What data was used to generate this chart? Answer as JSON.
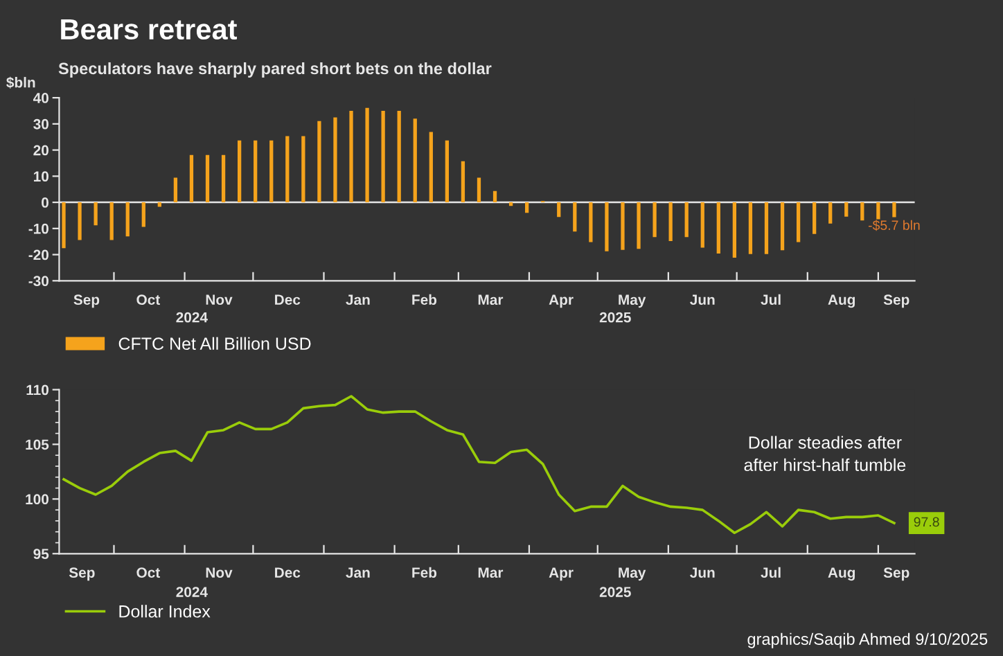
{
  "chart_data": [
    {
      "type": "bar",
      "title": "Bears retreat",
      "subtitle": "Speculators have sharply pared short bets on the dollar",
      "ylabel": "$bln",
      "x": [
        "2024-09-09",
        "2024-09-16",
        "2024-09-23",
        "2024-09-30",
        "2024-10-07",
        "2024-10-14",
        "2024-10-21",
        "2024-10-28",
        "2024-11-04",
        "2024-11-11",
        "2024-11-18",
        "2024-11-25",
        "2024-12-02",
        "2024-12-09",
        "2024-12-16",
        "2024-12-23",
        "2024-12-30",
        "2025-01-06",
        "2025-01-13",
        "2025-01-20",
        "2025-01-27",
        "2025-02-03",
        "2025-02-10",
        "2025-02-17",
        "2025-02-24",
        "2025-03-03",
        "2025-03-10",
        "2025-03-17",
        "2025-03-24",
        "2025-03-31",
        "2025-04-07",
        "2025-04-14",
        "2025-04-21",
        "2025-04-28",
        "2025-05-05",
        "2025-05-12",
        "2025-05-19",
        "2025-05-26",
        "2025-06-02",
        "2025-06-09",
        "2025-06-16",
        "2025-06-23",
        "2025-06-30",
        "2025-07-07",
        "2025-07-14",
        "2025-07-21",
        "2025-07-28",
        "2025-08-04",
        "2025-08-11",
        "2025-08-18",
        "2025-08-25",
        "2025-09-01",
        "2025-09-08"
      ],
      "series": [
        {
          "name": "CFTC Net All Billion USD",
          "color": "#f5a31c",
          "values": [
            -17.5,
            -14.4,
            -8.8,
            -14.4,
            -13.0,
            -9.4,
            -1.7,
            9.4,
            18.1,
            18.1,
            18.1,
            23.7,
            23.7,
            23.7,
            25.3,
            25.3,
            31.1,
            32.5,
            35.0,
            36.1,
            35.0,
            35.0,
            32.0,
            26.9,
            23.7,
            15.7,
            9.4,
            4.3,
            -1.4,
            -4.0,
            0.5,
            -5.6,
            -11.2,
            -15.2,
            -18.7,
            -18.2,
            -17.8,
            -13.3,
            -14.8,
            -13.3,
            -17.3,
            -19.6,
            -21.2,
            -19.8,
            -19.8,
            -18.3,
            -15.2,
            -12.1,
            -8.1,
            -5.5,
            -6.9,
            -6.5,
            -5.7
          ],
          "value_labels": [
            null,
            null,
            null,
            null,
            null,
            null,
            null,
            null,
            null,
            null,
            null,
            null,
            null,
            null,
            null,
            null,
            null,
            null,
            null,
            null,
            null,
            null,
            null,
            null,
            null,
            null,
            null,
            null,
            null,
            null,
            null,
            null,
            null,
            null,
            null,
            null,
            null,
            null,
            null,
            null,
            null,
            null,
            null,
            null,
            null,
            null,
            null,
            null,
            null,
            null,
            null,
            null,
            "-$5.7 bln"
          ]
        }
      ],
      "xlim": [
        "2024-09-07",
        "2025-09-17"
      ],
      "xticks": [
        {
          "value": "2024-10-01",
          "label": null
        },
        {
          "value": "2024-11-01",
          "label": null
        },
        {
          "value": "2024-12-01",
          "label": null
        },
        {
          "value": "2025-01-01",
          "label": null
        },
        {
          "value": "2025-02-01",
          "label": null
        },
        {
          "value": "2025-03-01",
          "label": null
        },
        {
          "value": "2025-04-01",
          "label": null
        },
        {
          "value": "2025-05-01",
          "label": null
        },
        {
          "value": "2025-06-01",
          "label": null
        },
        {
          "value": "2025-07-01",
          "label": null
        },
        {
          "value": "2025-08-01",
          "label": null
        },
        {
          "value": "2025-09-01",
          "label": null
        },
        {
          "value": "2024-09-19",
          "label": "Sep"
        },
        {
          "value": "2024-10-16",
          "label": "Oct"
        },
        {
          "value": "2024-11-16",
          "label": "Nov"
        },
        {
          "value": "2024-12-16",
          "label": "Dec"
        },
        {
          "value": "2025-01-16",
          "label": "Jan"
        },
        {
          "value": "2025-02-14",
          "label": "Feb"
        },
        {
          "value": "2025-03-15",
          "label": "Mar"
        },
        {
          "value": "2025-04-15",
          "label": "Apr"
        },
        {
          "value": "2025-05-16",
          "label": "May"
        },
        {
          "value": "2025-06-16",
          "label": "Jun"
        },
        {
          "value": "2025-07-16",
          "label": "Jul"
        },
        {
          "value": "2025-08-16",
          "label": "Aug"
        },
        {
          "value": "2025-09-09",
          "label": "Sep"
        }
      ],
      "ylim": [
        -30,
        40
      ],
      "yticks": [
        -30,
        -20,
        -10,
        0,
        10,
        20,
        30,
        40
      ],
      "annotations": [
        "2024",
        "2025"
      ],
      "ref_lines": [
        {
          "axis": "y",
          "value": 0,
          "color": "#e6e6e6"
        }
      ],
      "legend": "bottom left",
      "grid": false
    },
    {
      "type": "line",
      "x": [
        "2024-09-09",
        "2024-09-16",
        "2024-09-23",
        "2024-09-30",
        "2024-10-07",
        "2024-10-14",
        "2024-10-21",
        "2024-10-28",
        "2024-11-04",
        "2024-11-11",
        "2024-11-18",
        "2024-11-25",
        "2024-12-02",
        "2024-12-09",
        "2024-12-16",
        "2024-12-23",
        "2024-12-30",
        "2025-01-06",
        "2025-01-13",
        "2025-01-20",
        "2025-01-27",
        "2025-02-03",
        "2025-02-10",
        "2025-02-17",
        "2025-02-24",
        "2025-03-03",
        "2025-03-10",
        "2025-03-17",
        "2025-03-24",
        "2025-03-31",
        "2025-04-07",
        "2025-04-14",
        "2025-04-21",
        "2025-04-28",
        "2025-05-05",
        "2025-05-12",
        "2025-05-19",
        "2025-05-26",
        "2025-06-02",
        "2025-06-09",
        "2025-06-16",
        "2025-06-23",
        "2025-06-30",
        "2025-07-07",
        "2025-07-14",
        "2025-07-21",
        "2025-07-28",
        "2025-08-04",
        "2025-08-11",
        "2025-08-18",
        "2025-08-25",
        "2025-09-01",
        "2025-09-08"
      ],
      "series": [
        {
          "name": "Dollar Index",
          "color": "#9acd0a",
          "values": [
            101.8,
            101.0,
            100.4,
            101.2,
            102.5,
            103.4,
            104.2,
            104.4,
            103.5,
            106.1,
            106.3,
            107.0,
            106.4,
            106.4,
            107.0,
            108.3,
            108.5,
            108.6,
            109.4,
            108.2,
            107.9,
            108.0,
            108.0,
            107.1,
            106.3,
            105.9,
            103.4,
            103.3,
            104.3,
            104.5,
            103.2,
            100.4,
            98.9,
            99.3,
            99.3,
            101.2,
            100.2,
            99.7,
            99.3,
            99.2,
            99.0,
            98.0,
            96.9,
            97.7,
            98.8,
            97.5,
            99.0,
            98.8,
            98.2,
            98.35,
            98.35,
            98.5,
            97.8
          ],
          "value_labels": [
            null,
            null,
            null,
            null,
            null,
            null,
            null,
            null,
            null,
            null,
            null,
            null,
            null,
            null,
            null,
            null,
            null,
            null,
            null,
            null,
            null,
            null,
            null,
            null,
            null,
            null,
            null,
            null,
            null,
            null,
            null,
            null,
            null,
            null,
            null,
            null,
            null,
            null,
            null,
            null,
            null,
            null,
            null,
            null,
            null,
            null,
            null,
            null,
            null,
            null,
            null,
            null,
            "97.8"
          ]
        }
      ],
      "xlim": [
        "2024-09-07",
        "2025-09-17"
      ],
      "xticks": [
        {
          "value": "2024-10-01",
          "label": null
        },
        {
          "value": "2024-11-01",
          "label": null
        },
        {
          "value": "2024-12-01",
          "label": null
        },
        {
          "value": "2025-01-01",
          "label": null
        },
        {
          "value": "2025-02-01",
          "label": null
        },
        {
          "value": "2025-03-01",
          "label": null
        },
        {
          "value": "2025-04-01",
          "label": null
        },
        {
          "value": "2025-05-01",
          "label": null
        },
        {
          "value": "2025-06-01",
          "label": null
        },
        {
          "value": "2025-07-01",
          "label": null
        },
        {
          "value": "2025-08-01",
          "label": null
        },
        {
          "value": "2025-09-01",
          "label": null
        },
        {
          "value": "2024-09-17",
          "label": "Sep"
        },
        {
          "value": "2024-10-16",
          "label": "Oct"
        },
        {
          "value": "2024-11-16",
          "label": "Nov"
        },
        {
          "value": "2024-12-16",
          "label": "Dec"
        },
        {
          "value": "2025-01-16",
          "label": "Jan"
        },
        {
          "value": "2025-02-14",
          "label": "Feb"
        },
        {
          "value": "2025-03-15",
          "label": "Mar"
        },
        {
          "value": "2025-04-15",
          "label": "Apr"
        },
        {
          "value": "2025-05-16",
          "label": "May"
        },
        {
          "value": "2025-06-16",
          "label": "Jun"
        },
        {
          "value": "2025-07-16",
          "label": "Jul"
        },
        {
          "value": "2025-08-16",
          "label": "Aug"
        },
        {
          "value": "2025-09-09",
          "label": "Sep"
        }
      ],
      "ylim": [
        95,
        110
      ],
      "yticks": [
        95,
        {
          "value": 96,
          "label": null
        },
        {
          "value": 97,
          "label": null
        },
        {
          "value": 98,
          "label": null
        },
        {
          "value": 99,
          "label": null
        },
        100,
        {
          "value": 101,
          "label": null
        },
        {
          "value": 102,
          "label": null
        },
        {
          "value": 103,
          "label": null
        },
        {
          "value": 104,
          "label": null
        },
        105,
        {
          "value": 106,
          "label": null
        },
        {
          "value": 107,
          "label": null
        },
        {
          "value": 108,
          "label": null
        },
        {
          "value": 109,
          "label": null
        },
        110
      ],
      "annotations": [
        "2024",
        "2025",
        "Dollar steadies after\nafter hirst-half tumble",
        "graphics/Saqib Ahmed 9/10/2025"
      ],
      "legend": "bottom left",
      "grid": false,
      "marker": "none",
      "line_style": "solid"
    }
  ]
}
